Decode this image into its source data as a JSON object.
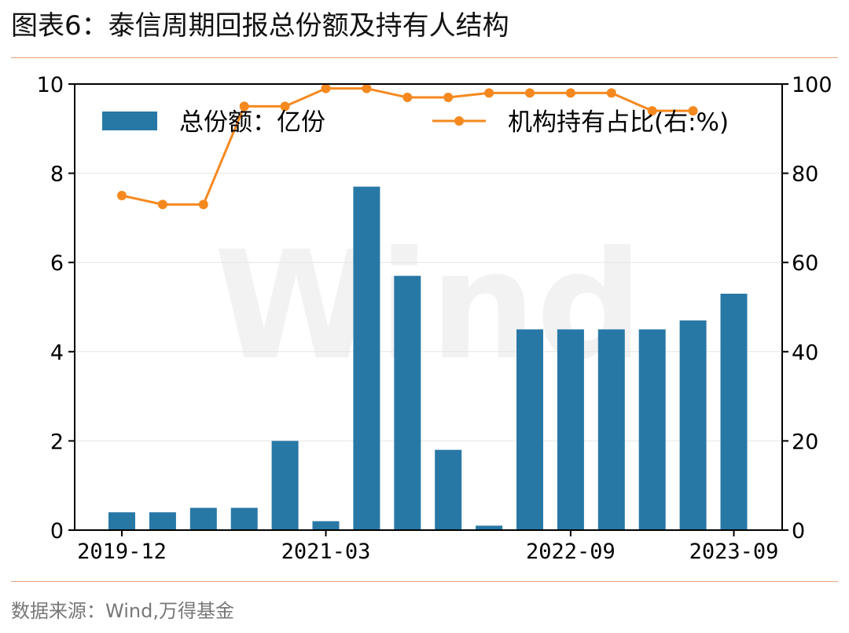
{
  "header": {
    "title": "图表6：泰信周期回报总份额及持有人结构"
  },
  "footer": {
    "source": "数据来源：Wind,万得基金"
  },
  "watermark": "Wind",
  "chart_data": {
    "type": "bar",
    "categories": [
      "2019-12",
      "",
      "",
      "",
      "",
      "2021-03",
      "",
      "",
      "",
      "",
      "",
      "2022-09",
      "",
      "",
      "",
      "2023-09"
    ],
    "x_tick_labels": [
      {
        "index": 0,
        "label": "2019-12"
      },
      {
        "index": 5,
        "label": "2021-03"
      },
      {
        "index": 11,
        "label": "2022-09"
      },
      {
        "index": 15,
        "label": "2023-09"
      }
    ],
    "series": [
      {
        "name": "总份额：亿份",
        "type": "bar",
        "axis": "left",
        "color": "#2878a6",
        "values": [
          0.4,
          0.4,
          0.5,
          0.5,
          2.0,
          0.2,
          7.7,
          5.7,
          1.8,
          0.1,
          4.5,
          4.5,
          4.5,
          4.5,
          4.7,
          5.3
        ]
      },
      {
        "name": "机构持有占比(右:%)",
        "type": "line",
        "axis": "right",
        "color": "#f5891f",
        "values": [
          75,
          73,
          73,
          95,
          95,
          99,
          99,
          97,
          97,
          98,
          98,
          98,
          98,
          94,
          94,
          null
        ]
      }
    ],
    "ylim_left": [
      0,
      10
    ],
    "yticks_left": [
      0,
      2,
      4,
      6,
      8,
      10
    ],
    "ylim_right": [
      0,
      100
    ],
    "yticks_right": [
      0,
      20,
      40,
      60,
      80,
      100
    ],
    "grid": "horizontal",
    "legend": "top"
  }
}
